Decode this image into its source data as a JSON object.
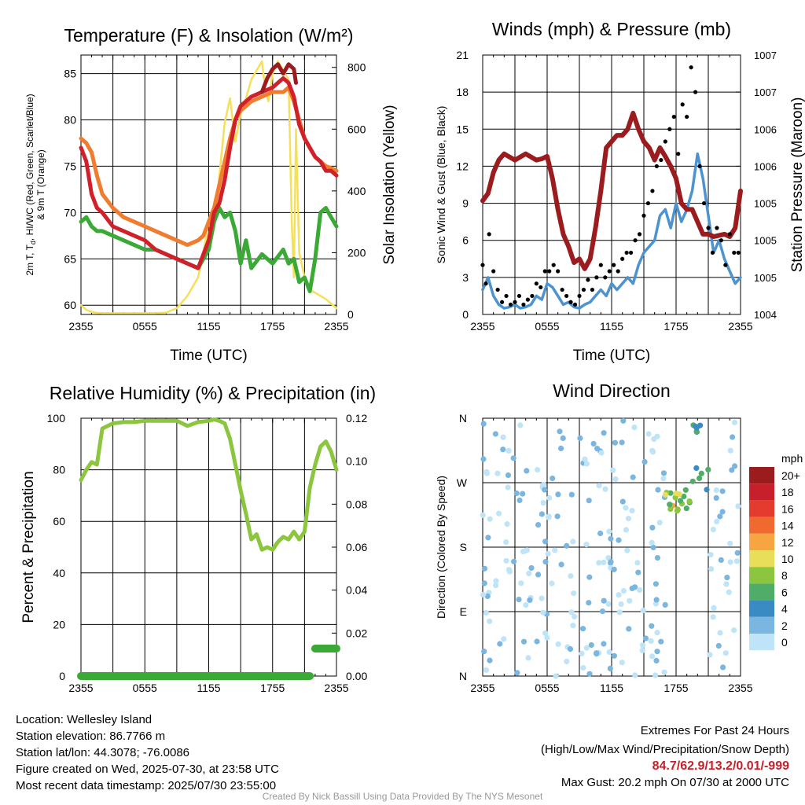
{
  "colors": {
    "temperature": "#d0202a",
    "dewpoint": "#3aa935",
    "nine_m_temp": "#f07c30",
    "heat_index": "#9b1c1f",
    "insolation": "#f5e05a",
    "wind": "#4d93cf",
    "gust": "#000000",
    "pressure": "#9b1c1f",
    "rh": "#8cc63f",
    "precip": "#3aa935"
  },
  "chart_data": [
    {
      "id": "temp",
      "type": "line",
      "title": "Temperature (F) & Insolation (W/m²)",
      "xlabel": "Time (UTC)",
      "ylabel_lines": [
        "2m T, T",
        "d",
        ", HI/WC (Red, Green, Scarlet/Blue)",
        "& 9m T (Orange)"
      ],
      "y2label": "Solar Insolation (Yellow)",
      "x_ticks": [
        "2355",
        "0555",
        "1155",
        "1755",
        "2355"
      ],
      "y_ticks": [
        "60",
        "65",
        "70",
        "75",
        "80",
        "85"
      ],
      "y2_ticks": [
        "0",
        "200",
        "400",
        "600",
        "800"
      ],
      "ylim": [
        59,
        87
      ],
      "y2lim": [
        0,
        840
      ],
      "series": [
        {
          "key": "insolation",
          "axis": "y2",
          "x": [
            0,
            0.5,
            1,
            1.5,
            2,
            3,
            4,
            5,
            6,
            7,
            8,
            9,
            10,
            11,
            11.5,
            12,
            12.5,
            13,
            13.5,
            14,
            14.5,
            15,
            15.5,
            16,
            16.5,
            17,
            17.3,
            17.6,
            18,
            18.5,
            19,
            19.5,
            19.8,
            20,
            20.2,
            20.5,
            21,
            21.5,
            22,
            23,
            24
          ],
          "y": [
            30,
            15,
            8,
            5,
            4,
            4,
            4,
            4,
            4,
            4,
            6,
            20,
            60,
            120,
            200,
            300,
            280,
            450,
            620,
            700,
            560,
            650,
            700,
            760,
            790,
            820,
            730,
            690,
            780,
            820,
            790,
            760,
            300,
            120,
            600,
            200,
            120,
            80,
            70,
            50,
            20
          ]
        },
        {
          "key": "nine_m_temp",
          "axis": "y",
          "x": [
            0,
            0.5,
            1,
            1.5,
            2,
            3,
            4,
            5,
            6,
            7,
            8,
            9,
            10,
            11,
            11.5,
            12,
            12.5,
            13,
            13.5,
            14,
            14.5,
            15,
            15.5,
            16,
            17,
            18,
            19,
            19.5,
            20,
            20.5,
            21,
            21.5,
            22,
            22.5,
            23,
            23.5,
            24
          ],
          "y": [
            78,
            77.5,
            76.5,
            74,
            72,
            70.5,
            69.5,
            69,
            68.5,
            68,
            67.5,
            67,
            66.5,
            67,
            67.5,
            69,
            70.5,
            73,
            75.5,
            78,
            80,
            81,
            81.5,
            82,
            82.5,
            83,
            83,
            83.5,
            82,
            80,
            78,
            77,
            76,
            75.5,
            75,
            74.8,
            74.5
          ]
        },
        {
          "key": "dewpoint",
          "axis": "y",
          "x": [
            0,
            0.5,
            1,
            1.5,
            2,
            3,
            4,
            5,
            6,
            7,
            8,
            9,
            10,
            11,
            12,
            12.5,
            13,
            13.5,
            14,
            14.5,
            15,
            15.5,
            16,
            17,
            18,
            19,
            19.5,
            20,
            20.5,
            21,
            21.5,
            22,
            22.5,
            23,
            23.5,
            24
          ],
          "y": [
            69,
            69.5,
            68.5,
            68,
            68,
            67.5,
            67,
            66.5,
            66,
            66,
            65.5,
            65,
            64.5,
            64,
            66,
            69,
            70.5,
            69.5,
            70,
            68,
            64.5,
            67,
            64,
            65.5,
            64.5,
            66,
            64.5,
            65,
            62.5,
            63,
            61.5,
            65,
            70,
            70.5,
            69.5,
            68.5
          ]
        },
        {
          "key": "temperature",
          "axis": "y",
          "x": [
            0,
            0.5,
            1,
            1.5,
            2,
            3,
            4,
            5,
            6,
            7,
            8,
            9,
            10,
            11,
            12,
            12.5,
            13,
            13.5,
            14,
            14.5,
            15,
            15.5,
            16,
            17,
            18,
            18.5,
            19,
            19.5,
            20,
            20.5,
            21,
            21.5,
            22,
            22.5,
            23,
            23.5,
            24
          ],
          "y": [
            77,
            75.5,
            72,
            70.5,
            70,
            68.5,
            68,
            67.5,
            67,
            66,
            65.5,
            65,
            64.5,
            64,
            67,
            70,
            71,
            73.5,
            77,
            80,
            81.5,
            82,
            82.5,
            83,
            83.5,
            84,
            84.5,
            84,
            82.5,
            79.5,
            78,
            77,
            76,
            75.5,
            74.5,
            74.5,
            74
          ]
        },
        {
          "key": "heat_index",
          "axis": "y",
          "x": [
            17,
            17.5,
            18,
            18.5,
            19,
            19.5,
            20,
            20.2
          ],
          "y": [
            83,
            84.5,
            85.5,
            86,
            85,
            86,
            85.5,
            84
          ]
        }
      ]
    },
    {
      "id": "wind",
      "type": "line",
      "title": "Winds (mph) & Pressure (mb)",
      "xlabel": "Time (UTC)",
      "ylabel": "Sonic Wind & Gust (Blue, Black)",
      "y2label": "Station Pressure (Maroon)",
      "x_ticks": [
        "2355",
        "0555",
        "1155",
        "1755",
        "2355"
      ],
      "y_ticks": [
        "0",
        "3",
        "6",
        "9",
        "12",
        "15",
        "18",
        "21"
      ],
      "y2_ticks": [
        "1004",
        "1005",
        "1005",
        "1005",
        "1006",
        "1006",
        "1007",
        "1007"
      ],
      "ylim": [
        0,
        21
      ],
      "series": [
        {
          "key": "wind",
          "axis": "y",
          "x": [
            0,
            0.5,
            1,
            1.5,
            2,
            2.5,
            3,
            3.5,
            4,
            4.5,
            5,
            5.5,
            6,
            6.5,
            7,
            7.5,
            8,
            8.5,
            9,
            9.5,
            10,
            10.5,
            11,
            11.5,
            12,
            12.5,
            13,
            13.5,
            14,
            14.5,
            15,
            15.5,
            16,
            16.5,
            17,
            17.5,
            18,
            18.5,
            19,
            19.5,
            20,
            20.5,
            21,
            21.5,
            22,
            22.5,
            23,
            23.5,
            24
          ],
          "y": [
            2,
            3,
            1.5,
            0.8,
            0.5,
            0.6,
            0.8,
            0.5,
            0.6,
            0.8,
            1.5,
            1.2,
            2.5,
            2.2,
            1.5,
            0.8,
            1,
            0.6,
            0.5,
            0.8,
            1,
            1.5,
            2,
            1.5,
            2.5,
            2,
            2.5,
            3,
            2.5,
            4,
            5,
            5.5,
            6,
            8,
            8.5,
            7,
            9,
            7.5,
            8.5,
            10,
            13,
            11,
            8,
            5,
            6,
            4.5,
            3.5,
            2.5,
            3
          ]
        },
        {
          "key": "pressure",
          "axis": "y",
          "x": [
            0,
            0.5,
            1,
            1.5,
            2,
            3,
            4,
            5,
            5.5,
            6,
            6.5,
            7,
            7.5,
            8,
            8.5,
            9,
            9.5,
            10,
            10.5,
            11,
            11.5,
            12,
            12.5,
            13,
            13.5,
            14,
            14.5,
            15,
            15.5,
            16,
            16.5,
            17,
            17.5,
            18,
            18.5,
            19,
            19.5,
            20,
            20.5,
            21,
            21.5,
            22,
            22.5,
            23,
            23.5,
            24
          ],
          "y": [
            9.2,
            9.8,
            11.5,
            12.5,
            13,
            12.5,
            13,
            12.5,
            12.6,
            12.8,
            11,
            8.5,
            6.5,
            5.5,
            4.2,
            4.5,
            3.7,
            4.5,
            7,
            10,
            13.5,
            14,
            14.5,
            14.5,
            15,
            16.3,
            15,
            14,
            13.5,
            12.5,
            13.5,
            12.8,
            12,
            11,
            9,
            8.5,
            8.5,
            7.5,
            6.5,
            6.5,
            6.3,
            6.4,
            6.5,
            6.3,
            7,
            10
          ]
        },
        {
          "key": "gust",
          "axis": "y",
          "type": "scatter",
          "x": [
            0,
            0.3,
            0.6,
            1,
            1.4,
            1.8,
            2.2,
            2.6,
            3,
            3.4,
            3.8,
            4.2,
            4.6,
            5,
            5.4,
            5.8,
            6.2,
            6.6,
            7,
            7.4,
            7.8,
            8.2,
            8.6,
            9,
            9.4,
            9.8,
            10.2,
            10.6,
            11,
            11.4,
            11.8,
            12.2,
            12.6,
            13,
            13.4,
            13.8,
            14.2,
            14.6,
            15,
            15.4,
            15.8,
            16.2,
            16.6,
            17,
            17.4,
            17.8,
            18.2,
            18.6,
            19,
            19.4,
            19.8,
            20.2,
            20.6,
            21,
            21.4,
            21.8,
            22.2,
            22.6,
            23,
            23.4,
            23.8
          ],
          "y": [
            4,
            2.5,
            6.5,
            3.5,
            2,
            1,
            1.5,
            0.8,
            1,
            1.5,
            0.8,
            1.2,
            1.5,
            2.5,
            2.2,
            3.5,
            3.5,
            4,
            3.5,
            2,
            1.5,
            1,
            0.8,
            1.5,
            2,
            2.8,
            2,
            3,
            4,
            3,
            3.5,
            4,
            3.5,
            4.5,
            5,
            5,
            6,
            6.5,
            8,
            9,
            10,
            12,
            12.5,
            14,
            15,
            16,
            13,
            17,
            16,
            20,
            18,
            12,
            9,
            7,
            5,
            7,
            6,
            4,
            6.5,
            5,
            5
          ]
        }
      ]
    },
    {
      "id": "rh",
      "type": "line",
      "title": "Relative Humidity (%) & Precipitation (in)",
      "ylabel": "Percent & Precipitation",
      "x_ticks": [
        "2355",
        "0555",
        "1155",
        "1755",
        "2355"
      ],
      "y_ticks": [
        "0",
        "20",
        "40",
        "60",
        "80",
        "100"
      ],
      "y2_ticks": [
        "0.00",
        "0.02",
        "0.04",
        "0.06",
        "0.08",
        "0.10",
        "0.12"
      ],
      "ylim": [
        0,
        100
      ],
      "y2lim": [
        0,
        0.12
      ],
      "series": [
        {
          "key": "rh",
          "axis": "y",
          "x": [
            0,
            0.5,
            1,
            1.5,
            2,
            3,
            4,
            5,
            6,
            7,
            8,
            9,
            10,
            11,
            12,
            12.5,
            13,
            13.5,
            14,
            14.5,
            15,
            15.5,
            16,
            16.5,
            17,
            17.5,
            18,
            18.5,
            19,
            19.5,
            20,
            20.5,
            21,
            21.5,
            22,
            22.5,
            23,
            23.5,
            24
          ],
          "y": [
            76,
            80,
            83,
            82,
            96,
            98,
            98.5,
            98.5,
            99,
            99,
            99,
            99,
            97,
            98.5,
            99,
            99.5,
            99,
            98,
            92,
            82,
            72,
            63,
            53,
            55,
            49,
            50,
            49,
            52,
            54,
            53,
            56,
            53,
            56,
            73,
            82,
            89,
            91,
            87,
            80
          ]
        },
        {
          "key": "precip",
          "axis": "y2",
          "x": [
            0,
            4,
            8,
            12,
            16,
            20,
            21.5
          ],
          "y": [
            0,
            0,
            0,
            0,
            0,
            0,
            0
          ]
        },
        {
          "key": "precip",
          "axis": "y2",
          "x": [
            22,
            24
          ],
          "y": [
            0.0128,
            0.0128
          ]
        }
      ]
    },
    {
      "id": "dir",
      "type": "scatter",
      "title": "Wind Direction",
      "ylabel": "Direction (Colored By Speed)",
      "x_ticks": [
        "2355",
        "0555",
        "1155",
        "1755",
        "2355"
      ],
      "y_ticks": [
        "N",
        "E",
        "S",
        "W",
        "N"
      ],
      "legend_title": "mph",
      "legend_labels": [
        "20+",
        "18",
        "16",
        "14",
        "12",
        "10",
        "8",
        "6",
        "4",
        "2",
        "0"
      ],
      "legend_colors": [
        "#9b1c1f",
        "#c8202a",
        "#e53a2e",
        "#f06a30",
        "#f7a541",
        "#e8de59",
        "#8cc63f",
        "#4fad68",
        "#3a8ac3",
        "#7ab6e0",
        "#bfe4f7"
      ]
    }
  ],
  "info": {
    "location": "Location: Wellesley Island",
    "elevation": "Station elevation: 86.7766 m",
    "latlon": "Station lat/lon: 44.3078; -76.0086",
    "created": "Figure created on Wed, 2025-07-30, at 23:58 UTC",
    "recent": "Most recent data timestamp: 2025/07/30 23:55:00"
  },
  "extremes": {
    "title": "Extremes For Past 24 Hours",
    "subtitle": "(High/Low/Max Wind/Precipitation/Snow Depth)",
    "values": "84.7/62.9/13.2/0.01/-999",
    "gust": "Max Gust: 20.2 mph On 07/30 at 2000 UTC"
  },
  "credit": "Created By Nick Bassill Using Data Provided By The NYS Mesonet"
}
